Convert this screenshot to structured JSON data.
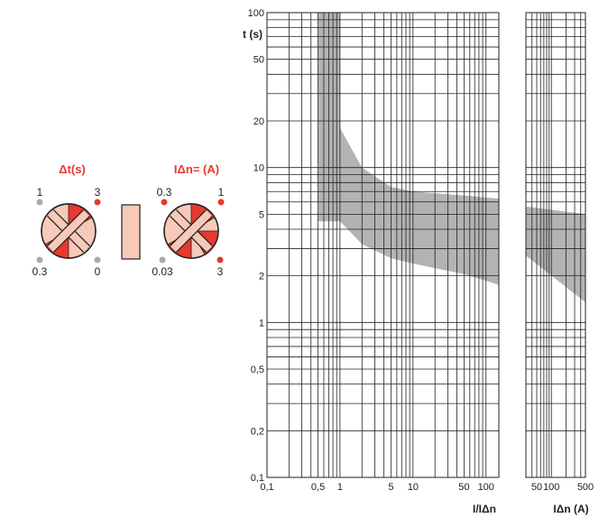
{
  "chart_data": [
    {
      "type": "area",
      "title": "",
      "ylabel": "t (s)",
      "xlabel": "I/IΔn",
      "x_scale": "log",
      "y_scale": "log",
      "xlim": [
        0.1,
        150
      ],
      "ylim": [
        0.1,
        100
      ],
      "x_tick_labels": [
        "0,1",
        "0,5",
        "1",
        "5",
        "10",
        "50",
        "100"
      ],
      "x_tick_values": [
        0.1,
        0.5,
        1,
        5,
        10,
        50,
        100
      ],
      "y_tick_labels": [
        "0,1",
        "0,2",
        "0,5",
        "1",
        "2",
        "5",
        "10",
        "20",
        "50",
        "100"
      ],
      "y_tick_values": [
        0.1,
        0.2,
        0.5,
        1,
        2,
        5,
        10,
        20,
        50,
        100
      ],
      "grid": true,
      "series": [
        {
          "upper": [
            [
              0.5,
              100
            ],
            [
              1,
              100
            ],
            [
              1,
              18
            ],
            [
              2,
              10
            ],
            [
              5,
              7.5
            ],
            [
              10,
              7
            ],
            [
              50,
              6.6
            ],
            [
              150,
              6.3
            ]
          ],
          "lower": [
            [
              0.5,
              4.5
            ],
            [
              1,
              4.5
            ],
            [
              2,
              3.2
            ],
            [
              5,
              2.6
            ],
            [
              10,
              2.4
            ],
            [
              50,
              2.05
            ],
            [
              150,
              1.75
            ]
          ]
        }
      ],
      "band_color": "#b3b3b3"
    },
    {
      "type": "area",
      "title": "",
      "xlabel": "IΔn (A)",
      "x_scale": "log",
      "y_scale": "log",
      "xlim": [
        30,
        500
      ],
      "ylim": [
        0.1,
        100
      ],
      "x_tick_labels": [
        "50",
        "100",
        "500"
      ],
      "x_tick_values": [
        50,
        100,
        500
      ],
      "grid": true,
      "series": [
        {
          "upper": [
            [
              30,
              5.6
            ],
            [
              500,
              5.0
            ]
          ],
          "lower": [
            [
              30,
              2.7
            ],
            [
              500,
              1.35
            ]
          ]
        }
      ],
      "band_color": "#b3b3b3"
    }
  ],
  "settings": {
    "dt_title": "Δt(s)",
    "idn_title": "IΔn= (A)",
    "dt_labels": {
      "top_left": "1",
      "top_right": "3",
      "bottom_left": "0.3",
      "bottom_right": "0"
    },
    "idn_labels": {
      "top_left": "0.3",
      "top_right": "1",
      "bottom_left": "0.03",
      "bottom_right": "3"
    },
    "colors": {
      "red": "#e8392f",
      "salmon": "#f7c9b9",
      "grey_dot": "#aaaaaa"
    }
  }
}
